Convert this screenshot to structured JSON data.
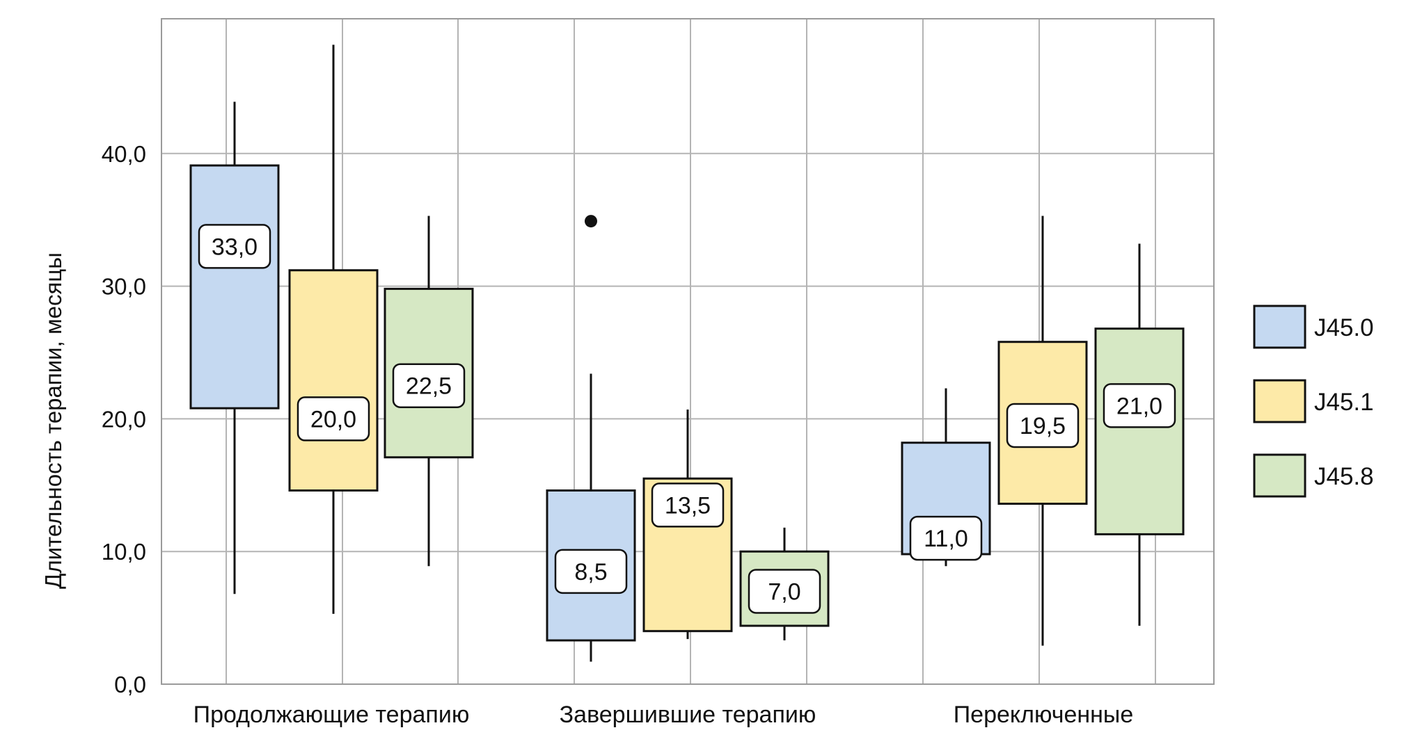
{
  "chart_data": {
    "type": "boxplot",
    "ylabel": "Длительность терапии, месяцы",
    "ylim": [
      0,
      50
    ],
    "yticks": [
      "0,0",
      "10,0",
      "20,0",
      "30,0",
      "40,0"
    ],
    "grid": true,
    "legend_position": "right",
    "categories": [
      "Продолжающие терапию",
      "Завершившие терапию",
      "Переключенные"
    ],
    "series": [
      {
        "name": "J45.0",
        "color": "#c5d9f1",
        "boxes": [
          {
            "whisker_low": 6.8,
            "q1": 20.8,
            "median": 33.0,
            "q3": 39.1,
            "whisker_high": 43.9,
            "label": "33,0"
          },
          {
            "whisker_low": 1.7,
            "q1": 3.3,
            "median": 8.5,
            "q3": 14.6,
            "whisker_high": 23.4,
            "label": "8,5",
            "outliers": [
              34.9
            ]
          },
          {
            "whisker_low": 8.9,
            "q1": 9.8,
            "median": 11.0,
            "q3": 18.2,
            "whisker_high": 22.3,
            "label": "11,0"
          }
        ]
      },
      {
        "name": "J45.1",
        "color": "#fdeaa8",
        "boxes": [
          {
            "whisker_low": 5.3,
            "q1": 14.6,
            "median": 20.0,
            "q3": 31.2,
            "whisker_high": 48.2,
            "label": "20,0"
          },
          {
            "whisker_low": 3.4,
            "q1": 4.0,
            "median": 13.5,
            "q3": 15.5,
            "whisker_high": 20.7,
            "label": "13,5"
          },
          {
            "whisker_low": 2.9,
            "q1": 13.6,
            "median": 19.5,
            "q3": 25.8,
            "whisker_high": 35.3,
            "label": "19,5"
          }
        ]
      },
      {
        "name": "J45.8",
        "color": "#d6e8c4",
        "boxes": [
          {
            "whisker_low": 8.9,
            "q1": 17.1,
            "median": 22.5,
            "q3": 29.8,
            "whisker_high": 35.3,
            "label": "22,5"
          },
          {
            "whisker_low": 3.3,
            "q1": 4.4,
            "median": 7.0,
            "q3": 10.0,
            "whisker_high": 11.8,
            "label": "7,0"
          },
          {
            "whisker_low": 4.4,
            "q1": 11.3,
            "median": 21.0,
            "q3": 26.8,
            "whisker_high": 33.2,
            "label": "21,0"
          }
        ]
      }
    ]
  }
}
